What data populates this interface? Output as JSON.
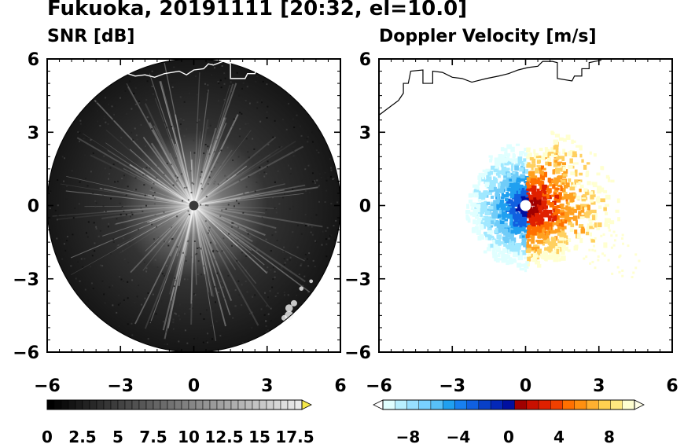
{
  "figure": {
    "title": "Fukuoka, 20191111 [20:32, el=10.0]"
  },
  "chart_data": [
    {
      "type": "heatmap",
      "title": "SNR [dB]",
      "xlim": [
        -6,
        6
      ],
      "ylim": [
        -6,
        6
      ],
      "xticks": [
        "−6",
        "−3",
        "0",
        "3",
        "6"
      ],
      "yticks": [
        "6",
        "3",
        "0",
        "−3",
        "−6"
      ],
      "colorbar": {
        "min": 0,
        "max": 18.5,
        "step": 0.5,
        "extend": "max",
        "ticks": [
          "0",
          "2.5",
          "5",
          "7.5",
          "10",
          "12.5",
          "15",
          "17.5"
        ],
        "colors": {
          "low": "#000000",
          "high": "#ffffff",
          "extend": "#f5e84a"
        }
      },
      "coastline_color": "#ffffff"
    },
    {
      "type": "heatmap",
      "title": "Doppler Velocity [m/s]",
      "xlim": [
        -6,
        6
      ],
      "ylim": [
        -6,
        6
      ],
      "xticks": [
        "−6",
        "−3",
        "0",
        "3",
        "6"
      ],
      "yticks": [
        "6",
        "3",
        "0",
        "−3",
        "−6"
      ],
      "colorbar": {
        "min": -10,
        "max": 10,
        "extend": "both",
        "ticks": [
          "−8",
          "−4",
          "0",
          "4",
          "8"
        ],
        "colors": {
          "neg_light": "#e0ffff",
          "neg_mid": "#20a0f0",
          "neg_dark": "#0010a0",
          "pos_dark": "#a00000",
          "pos_mid": "#ff7000",
          "pos_light": "#ffffd0"
        }
      },
      "coastline_color": "#000000"
    }
  ]
}
